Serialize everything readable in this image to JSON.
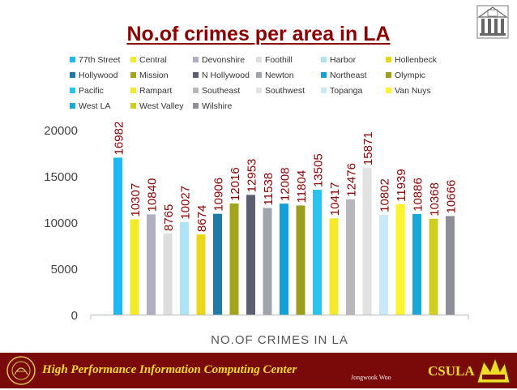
{
  "chart_data": {
    "type": "bar",
    "title": "No.of crimes per area in LA",
    "xlabel": "NO.OF CRIMES IN LA",
    "ylabel": "",
    "ylim": [
      0,
      20000
    ],
    "yticks": [
      0,
      5000,
      10000,
      15000,
      20000
    ],
    "grid": false,
    "legend_position": "top",
    "series": [
      {
        "name": "77th Street",
        "value": 16982,
        "color": "#1fb8f0"
      },
      {
        "name": "Central",
        "value": 10307,
        "color": "#f2ea2a"
      },
      {
        "name": "Devonshire",
        "value": 10840,
        "color": "#b0aec0"
      },
      {
        "name": "Foothill",
        "value": 8765,
        "color": "#dddddd"
      },
      {
        "name": "Harbor",
        "value": 10027,
        "color": "#aee3f8"
      },
      {
        "name": "Hollenbeck",
        "value": 8674,
        "color": "#e8da1a"
      },
      {
        "name": "Hollywood",
        "value": 10906,
        "color": "#1f7aa6"
      },
      {
        "name": "Mission",
        "value": 12016,
        "color": "#a3a31e"
      },
      {
        "name": "N Hollywood",
        "value": 12953,
        "color": "#5b5f70"
      },
      {
        "name": "Newton",
        "value": 11538,
        "color": "#a2a4ac"
      },
      {
        "name": "Northeast",
        "value": 12008,
        "color": "#14a0d8"
      },
      {
        "name": "Olympic",
        "value": 11804,
        "color": "#9d9e1e"
      },
      {
        "name": "Pacific",
        "value": 13505,
        "color": "#26c4ee"
      },
      {
        "name": "Rampart",
        "value": 10417,
        "color": "#f2ea2a"
      },
      {
        "name": "Southeast",
        "value": 12476,
        "color": "#b8b8bc"
      },
      {
        "name": "Southwest",
        "value": 15871,
        "color": "#e2e2e2"
      },
      {
        "name": "Topanga",
        "value": 10802,
        "color": "#c9e9f8"
      },
      {
        "name": "Van Nuys",
        "value": 11939,
        "color": "#fff22e"
      },
      {
        "name": "West LA",
        "value": 10886,
        "color": "#1aa8d8"
      },
      {
        "name": "West Valley",
        "value": 10368,
        "color": "#cdcd22"
      },
      {
        "name": "Wilshire",
        "value": 10666,
        "color": "#8e8e98"
      }
    ]
  },
  "footer": {
    "center_name": "High Performance Information Computing Center",
    "author": "Jongwook Woo",
    "school": "CSULA"
  },
  "colors": {
    "title": "#8b0000",
    "data_label": "#8b0000",
    "footer_bg": "#7a0a0a",
    "footer_text": "#f2dc2a"
  }
}
